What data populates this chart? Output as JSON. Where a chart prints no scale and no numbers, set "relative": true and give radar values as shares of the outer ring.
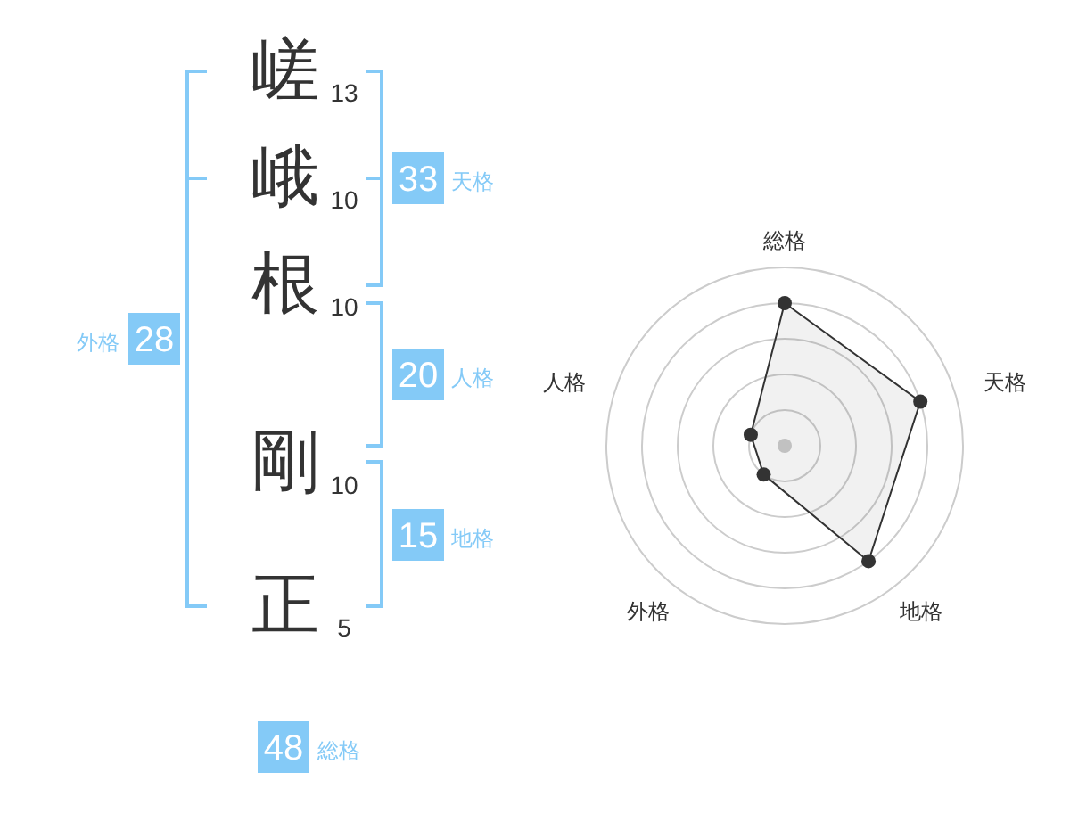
{
  "chart_data": [
    {
      "type": "other",
      "categories": [
        "嵯",
        "峨",
        "根",
        "剛",
        "正"
      ],
      "values": [
        13,
        10,
        10,
        10,
        5
      ],
      "data_labels": true
    },
    {
      "type": "other",
      "categories": [
        "天格",
        "人格",
        "地格",
        "外格",
        "総格"
      ],
      "values": [
        33,
        20,
        15,
        28,
        48
      ],
      "color": "#84caf7",
      "data_labels": true
    },
    {
      "type": "radar",
      "categories": [
        "総格",
        "天格",
        "地格",
        "外格",
        "人格"
      ],
      "relative": true,
      "grid": true,
      "marker": "circle",
      "series": [
        {
          "color": "#333333",
          "values": [
            0.8,
            0.8,
            0.8,
            0.2,
            0.2
          ]
        }
      ]
    }
  ]
}
